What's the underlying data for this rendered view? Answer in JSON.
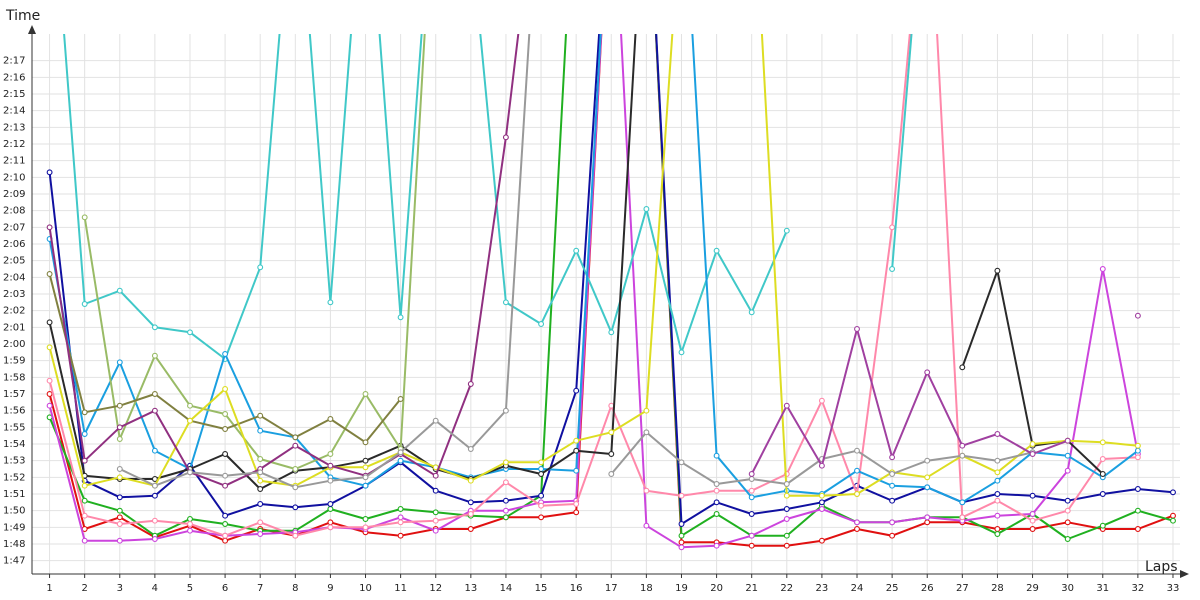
{
  "chart_data": {
    "type": "line",
    "ylabel": "Time",
    "xlabel": "Laps",
    "x": [
      1,
      2,
      3,
      4,
      5,
      6,
      7,
      8,
      9,
      10,
      11,
      12,
      13,
      14,
      15,
      16,
      17,
      18,
      19,
      20,
      21,
      22,
      23,
      24,
      25,
      26,
      27,
      28,
      29,
      30,
      31,
      32,
      33
    ],
    "x_tick_labels": [
      "1",
      "2",
      "3",
      "4",
      "5",
      "6",
      "7",
      "8",
      "9",
      "10",
      "11",
      "12",
      "13",
      "14",
      "15",
      "16",
      "17",
      "18",
      "19",
      "20",
      "21",
      "22",
      "23",
      "24",
      "25",
      "26",
      "27",
      "28",
      "29",
      "30",
      "31",
      "32",
      "33"
    ],
    "y_tick_labels": [
      "1:47",
      "1:48",
      "1:49",
      "1:50",
      "1:51",
      "1:52",
      "1:53",
      "1:54",
      "1:55",
      "1:56",
      "1:57",
      "1:58",
      "1:59",
      "2:00",
      "2:01",
      "2:02",
      "2:03",
      "2:04",
      "2:05",
      "2:06",
      "2:07",
      "2:08",
      "2:09",
      "2:10",
      "2:11",
      "2:12",
      "2:13",
      "2:14",
      "2:15",
      "2:16",
      "2:17"
    ],
    "ylim_seconds": [
      106.2,
      138.6
    ],
    "xlim": [
      0.5,
      33.2
    ],
    "grid": true,
    "legend": "none",
    "series": [
      {
        "color": "#e01010",
        "values": [
          117.0,
          108.9,
          109.6,
          108.4,
          109.1,
          108.2,
          108.9,
          108.5,
          109.3,
          108.7,
          108.5,
          108.9,
          108.9,
          109.6,
          109.6,
          109.9,
          150,
          150,
          108.1,
          108.1,
          107.9,
          107.9,
          108.2,
          108.9,
          108.5,
          109.3,
          109.3,
          108.9,
          108.9,
          109.3,
          108.9,
          108.9,
          109.7
        ]
      },
      {
        "color": "#20b020",
        "values": [
          115.6,
          110.6,
          110.0,
          108.5,
          109.5,
          109.2,
          108.8,
          108.8,
          110.1,
          109.5,
          110.1,
          109.9,
          109.7,
          109.6,
          110.9,
          150,
          150,
          150,
          108.5,
          109.8,
          108.5,
          108.5,
          110.3,
          109.3,
          109.3,
          109.6,
          109.6,
          108.6,
          109.8,
          108.3,
          109.1,
          110.0,
          109.4
        ]
      },
      {
        "color": "#1010a0",
        "values": [
          130.3,
          111.8,
          110.8,
          110.9,
          112.7,
          109.7,
          110.4,
          110.2,
          110.4,
          111.5,
          112.9,
          111.2,
          110.5,
          110.6,
          110.9,
          117.2,
          150,
          150,
          109.2,
          110.5,
          109.8,
          110.1,
          110.5,
          111.5,
          110.6,
          111.4,
          110.5,
          111.0,
          110.9,
          110.6,
          111.0,
          111.3,
          111.1
        ]
      },
      {
        "color": "#cc44dd",
        "values": [
          116.3,
          108.2,
          108.2,
          108.3,
          108.8,
          108.5,
          108.6,
          108.7,
          109.0,
          108.9,
          109.6,
          108.8,
          110.0,
          110.0,
          110.5,
          110.6,
          150,
          109.1,
          107.8,
          107.9,
          108.5,
          109.5,
          110.1,
          109.3,
          109.3,
          109.6,
          109.4,
          109.7,
          109.8,
          112.4,
          124.5,
          113.4,
          null
        ]
      },
      {
        "color": "#ff88aa",
        "values": [
          117.8,
          109.7,
          109.2,
          109.4,
          109.2,
          108.5,
          109.3,
          108.5,
          109.0,
          109.0,
          109.3,
          109.4,
          109.8,
          111.7,
          110.3,
          110.4,
          116.3,
          111.2,
          110.9,
          111.2,
          111.2,
          112.2,
          116.6,
          111.0,
          127.0,
          150,
          109.6,
          110.6,
          109.4,
          110.0,
          113.1,
          113.2,
          null
        ]
      },
      {
        "color": "#40c8c8",
        "values": [
          150,
          122.4,
          123.2,
          121.0,
          120.7,
          119.1,
          124.6,
          150,
          122.5,
          150,
          121.6,
          150,
          144.6,
          122.5,
          121.2,
          125.6,
          120.7,
          128.1,
          119.5,
          125.6,
          121.9,
          126.8,
          null,
          null,
          124.5,
          150,
          null,
          null,
          null,
          null,
          null,
          null,
          null
        ]
      },
      {
        "color": "#1a9fe0",
        "values": [
          126.3,
          114.6,
          118.9,
          113.6,
          112.5,
          119.4,
          114.8,
          114.4,
          112.0,
          111.5,
          113.0,
          112.6,
          112.0,
          112.5,
          112.5,
          112.4,
          150,
          150,
          150,
          113.3,
          110.8,
          111.2,
          111.0,
          112.4,
          111.5,
          111.4,
          110.5,
          111.8,
          113.5,
          113.3,
          112.0,
          113.6,
          null
        ]
      },
      {
        "color": "#2a2a2a",
        "values": [
          121.3,
          112.1,
          111.9,
          111.9,
          112.5,
          113.4,
          111.3,
          112.4,
          112.6,
          113.0,
          113.9,
          112.5,
          111.9,
          112.7,
          112.2,
          113.6,
          113.4,
          150,
          150,
          null,
          null,
          null,
          null,
          null,
          null,
          null,
          118.6,
          124.4,
          113.9,
          114.2,
          112.2,
          null,
          null
        ]
      },
      {
        "color": "#99bb66",
        "values": [
          null,
          127.6,
          114.3,
          119.3,
          116.3,
          115.8,
          113.1,
          112.5,
          113.4,
          117.0,
          113.7,
          150,
          null,
          null,
          null,
          null,
          null,
          null,
          null,
          null,
          null,
          null,
          null,
          null,
          null,
          null,
          null,
          null,
          null,
          null,
          null,
          null,
          null
        ]
      },
      {
        "color": "#808040",
        "values": [
          124.2,
          115.9,
          116.3,
          117.0,
          115.4,
          114.9,
          115.7,
          114.4,
          115.5,
          114.1,
          116.7,
          null,
          null,
          null,
          null,
          null,
          null,
          null,
          null,
          null,
          null,
          null,
          null,
          null,
          null,
          null,
          null,
          null,
          null,
          null,
          null,
          null,
          null
        ]
      },
      {
        "color": "#dddd22",
        "values": [
          119.8,
          111.5,
          112.0,
          111.5,
          115.4,
          117.3,
          111.8,
          111.5,
          112.6,
          112.6,
          113.5,
          112.6,
          111.8,
          112.9,
          112.9,
          114.2,
          114.7,
          116.0,
          146.6,
          150,
          150,
          110.9,
          110.9,
          111.0,
          112.3,
          112.0,
          113.3,
          112.3,
          114.0,
          114.2,
          114.1,
          113.9,
          null
        ]
      },
      {
        "color": "#903080",
        "values": [
          127.0,
          113.0,
          115.0,
          116.0,
          112.3,
          111.5,
          112.5,
          113.9,
          112.7,
          112.1,
          113.4,
          112.1,
          117.6,
          132.4,
          150,
          null,
          null,
          null,
          null,
          null,
          null,
          null,
          null,
          null,
          null,
          null,
          null,
          null,
          null,
          null,
          null,
          null,
          null
        ]
      },
      {
        "color": "#999999",
        "values": [
          null,
          null,
          112.5,
          111.5,
          112.3,
          112.1,
          112.3,
          111.4,
          111.8,
          112.0,
          113.5,
          115.4,
          113.7,
          116.0,
          150,
          null,
          112.2,
          114.7,
          112.9,
          111.6,
          111.9,
          111.6,
          113.1,
          113.6,
          112.2,
          113.0,
          113.3,
          113.0,
          113.5,
          null,
          null,
          null,
          null
        ]
      },
      {
        "color": "#a040a0",
        "values": [
          null,
          null,
          null,
          null,
          null,
          null,
          null,
          null,
          null,
          null,
          null,
          null,
          null,
          null,
          null,
          null,
          null,
          null,
          null,
          null,
          112.2,
          116.3,
          112.7,
          120.9,
          113.2,
          118.3,
          113.9,
          114.6,
          113.4,
          114.2,
          null,
          121.7,
          null
        ]
      }
    ]
  }
}
